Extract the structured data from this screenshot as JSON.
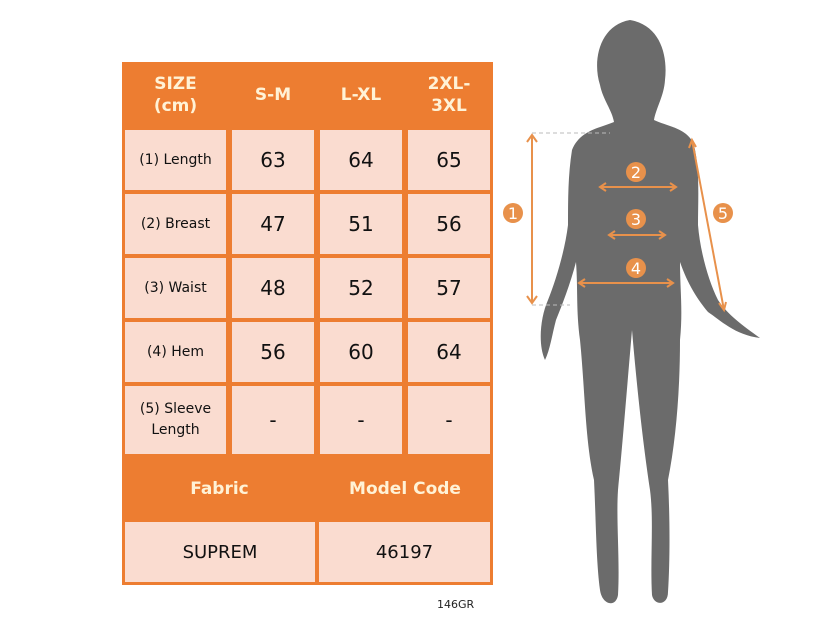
{
  "table": {
    "header": [
      "SIZE\n(cm)",
      "S-M",
      "L-XL",
      "2XL-\n3XL"
    ],
    "rows": [
      {
        "label": "(1) Length",
        "values": [
          "63",
          "64",
          "65"
        ]
      },
      {
        "label": "(2) Breast",
        "values": [
          "47",
          "51",
          "56"
        ]
      },
      {
        "label": "(3) Waist",
        "values": [
          "48",
          "52",
          "57"
        ]
      },
      {
        "label": "(4) Hem",
        "values": [
          "56",
          "60",
          "64"
        ]
      },
      {
        "label": "(5) Sleeve Length",
        "values": [
          "-",
          "-",
          "-"
        ]
      }
    ],
    "footer_headers": [
      "Fabric",
      "Model Code"
    ],
    "footer_values": [
      "SUPREM",
      "46197"
    ]
  },
  "product_code": "146GR",
  "figure": {
    "markers": [
      "1",
      "2",
      "3",
      "4",
      "5"
    ]
  },
  "colors": {
    "accent": "#ED7D31",
    "cell": "#FADCD0",
    "silhouette": "#6B6B6B"
  }
}
